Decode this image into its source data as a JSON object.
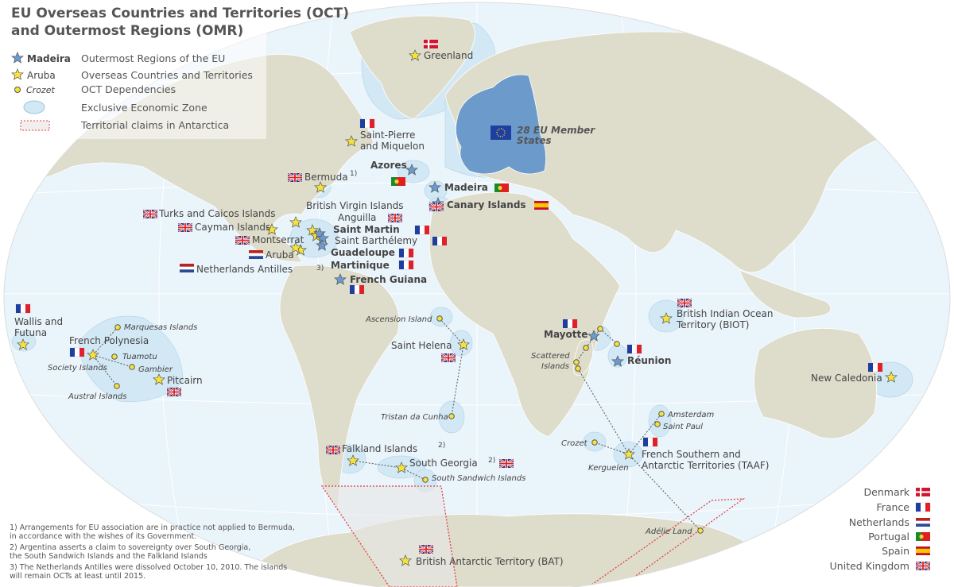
{
  "title": {
    "line1": "EU Overseas Countries and Territories (OCT)",
    "line2": "and Outermost Regions (OMR)"
  },
  "legend": {
    "omr": {
      "example": "Madeira",
      "label": "Outermost Regions of the EU"
    },
    "oct": {
      "example": "Aruba",
      "label": "Overseas Countries and Territories"
    },
    "dep": {
      "example": "Crozet",
      "label": "OCT Dependencies"
    },
    "eez": {
      "label": "Exclusive Economic Zone"
    },
    "claims": {
      "label": "Territorial claims in Antarctica"
    }
  },
  "colors": {
    "ocean": "#eaf4fb",
    "land": "#dedccb",
    "eu": "#6c9bcb",
    "eez": "#d3e8f5",
    "omr_star": "#6a9ad0",
    "oct_star": "#f5e23a",
    "claim_border": "#e04040"
  },
  "eu_label": {
    "line1": "28 EU Member",
    "line2": "States"
  },
  "territories": {
    "greenland": "Greenland",
    "spm1": "Saint-Pierre",
    "spm2": "and Miquelon",
    "bermuda": "Bermuda",
    "bermuda_note": "1)",
    "azores": "Azores",
    "madeira": "Madeira",
    "canary": "Canary Islands",
    "turks": "Turks and Caicos Islands",
    "cayman": "Cayman Islands",
    "bvi": "British Virgin Islands",
    "anguilla": "Anguilla",
    "saint_martin": "Saint Martin",
    "saint_barth": "Saint Barthélemy",
    "montserrat": "Montserrat",
    "guadeloupe": "Guadeloupe",
    "aruba": "Aruba",
    "martinique": "Martinique",
    "antilles": "Netherlands Antilles",
    "antilles_note": "3)",
    "guiana": "French Guiana",
    "wallis1": "Wallis and",
    "wallis2": "Futuna",
    "polynesia": "French Polynesia",
    "marquesas": "Marquesas Islands",
    "tuamotu": "Tuamotu",
    "society": "Society Islands",
    "gambier": "Gambier",
    "austral": "Austral Islands",
    "pitcairn": "Pitcairn",
    "ascension": "Ascension Island",
    "helena": "Saint Helena",
    "tristan": "Tristan da Cunha",
    "falkland": "Falkland Islands",
    "falkland_note": "2)",
    "sgeorgia": "South Georgia",
    "sgeorgia_note": "2)",
    "ssandwich": "South Sandwich Islands",
    "bat": "British Antarctic Territory (BAT)",
    "mayotte": "Mayotte",
    "reunion": "Réunion",
    "scattered1": "Scattered",
    "scattered2": "Islands",
    "biot1": "British Indian Ocean",
    "biot2": "Territory (BIOT)",
    "newcal": "New Caledonia",
    "amsterdam": "Amsterdam",
    "stpaul": "Saint Paul",
    "crozet": "Crozet",
    "kerguelen": "Kerguelen",
    "taaf1": "French Southern and",
    "taaf2": "Antarctic Territories (TAAF)",
    "adelie": "Adélie Land"
  },
  "countries": [
    "Denmark",
    "France",
    "Netherlands",
    "Portugal",
    "Spain",
    "United Kingdom"
  ],
  "footnotes": {
    "n1a": "1)  Arrangements for EU association are in practice not applied to Bermuda,",
    "n1b": "in accordance with the wishes of its Government.",
    "n2a": "2) Argentina asserts a claim to sovereignty over South Georgia,",
    "n2b": "the South Sandwich Islands and the Falkland Islands",
    "n3a": "3) The Netherlands Antilles were dissolved October 10, 2010. The islands",
    "n3b": "will remain OCTs at least until 2015."
  }
}
